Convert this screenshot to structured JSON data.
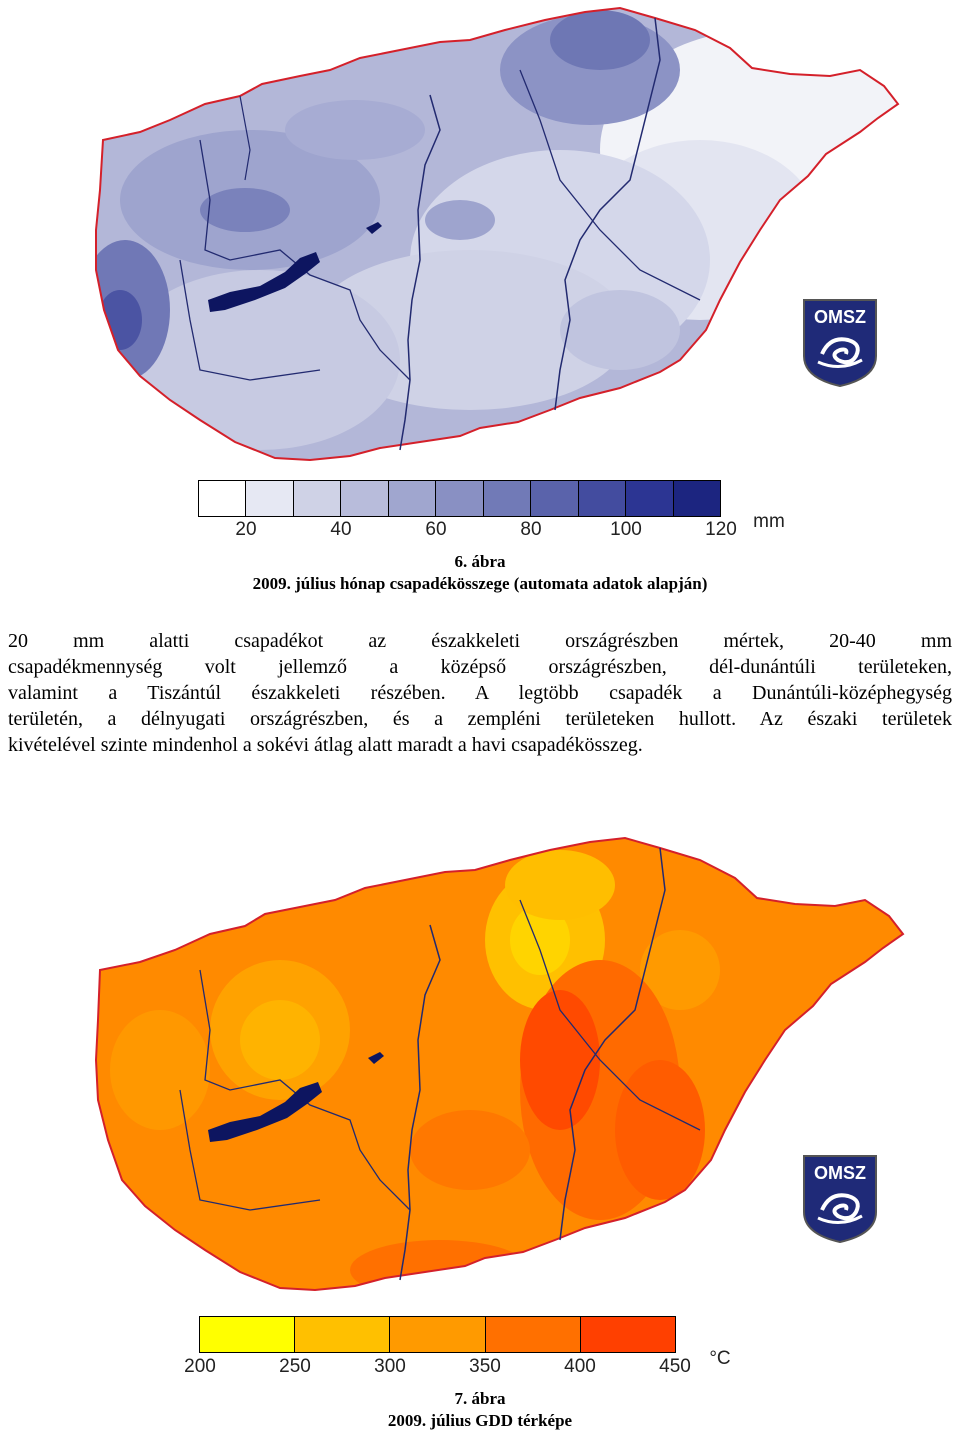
{
  "figure1": {
    "legend": {
      "unit": "mm",
      "ticks": [
        "20",
        "40",
        "60",
        "80",
        "100",
        "120"
      ],
      "colors": [
        "#ffffff",
        "#e6e8f3",
        "#cfd2e6",
        "#b8bcdb",
        "#a0a6cf",
        "#8990c3",
        "#717ab7",
        "#5a63ab",
        "#434c9f",
        "#2c3593",
        "#1c2580"
      ]
    },
    "caption_number": "6.   ábra",
    "caption_title": "2009. július hónap csapadékösszege (automata adatok alapján)",
    "logo_text": "OMSZ"
  },
  "paragraph": {
    "lines": [
      "20 mm alatti csapadékot az északkeleti országrészben mértek, 20-40 mm",
      "csapadékmennység volt jellemző a középső országrészben, dél-dunántúli területeken,",
      "valamint a Tiszántúl északkeleti részében. A legtöbb csapadék a Dunántúli-középhegység",
      "területén, a délnyugati országrészben, és a zempléni területeken hullott. Az északi területek",
      "kivételével szinte mindenhol a sokévi átlag alatt maradt a havi csapadékösszeg."
    ]
  },
  "figure2": {
    "legend": {
      "unit": "°C",
      "ticks": [
        "200",
        "250",
        "300",
        "350",
        "400",
        "450"
      ],
      "colors": [
        "#ffff00",
        "#ffc000",
        "#ff9a00",
        "#ff7000",
        "#ff4000"
      ]
    },
    "caption_number": "7.   ábra",
    "caption_title": "2009. július GDD térképe",
    "logo_text": "OMSZ"
  }
}
